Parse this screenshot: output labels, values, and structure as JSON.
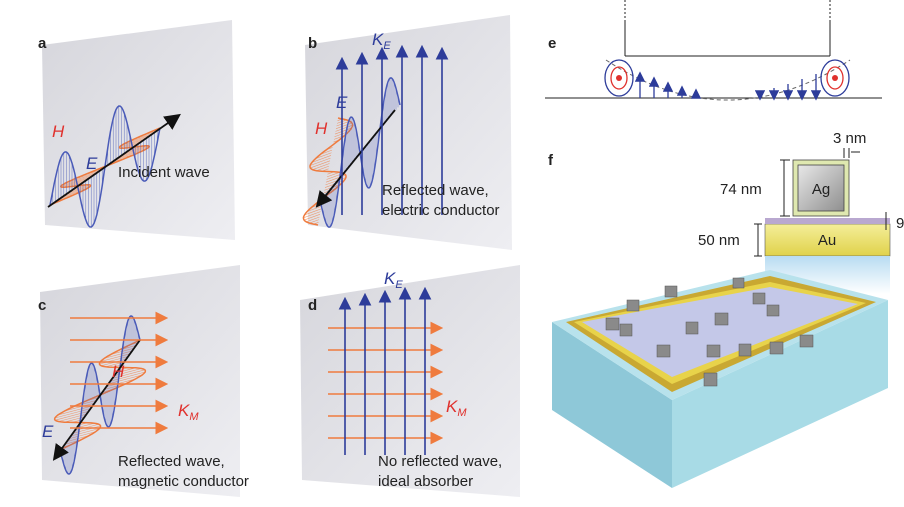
{
  "panels": {
    "a": {
      "label": "a",
      "E": "E",
      "H": "H",
      "caption": [
        "Incident wave"
      ]
    },
    "b": {
      "label": "b",
      "K": {
        "symbol": "K",
        "subscript": "E"
      },
      "E": "E",
      "H": "H",
      "caption": [
        "Reflected wave,",
        "electric conductor"
      ]
    },
    "c": {
      "label": "c",
      "H": "H",
      "E": "E",
      "K": {
        "symbol": "K",
        "subscript": "M"
      },
      "caption": [
        "Reflected wave,",
        "magnetic conductor"
      ]
    },
    "d": {
      "label": "d",
      "KE": {
        "symbol": "K",
        "subscript": "E"
      },
      "KM": {
        "symbol": "K",
        "subscript": "M"
      },
      "caption": [
        "No reflected wave,",
        "ideal absorber"
      ]
    },
    "e": {
      "label": "e"
    },
    "f": {
      "label": "f",
      "gap": "3 nm",
      "cube_size": "74 nm",
      "cube": "Ag",
      "film_thickness": "50 nm",
      "film": "Au",
      "spacer": "9"
    }
  }
}
